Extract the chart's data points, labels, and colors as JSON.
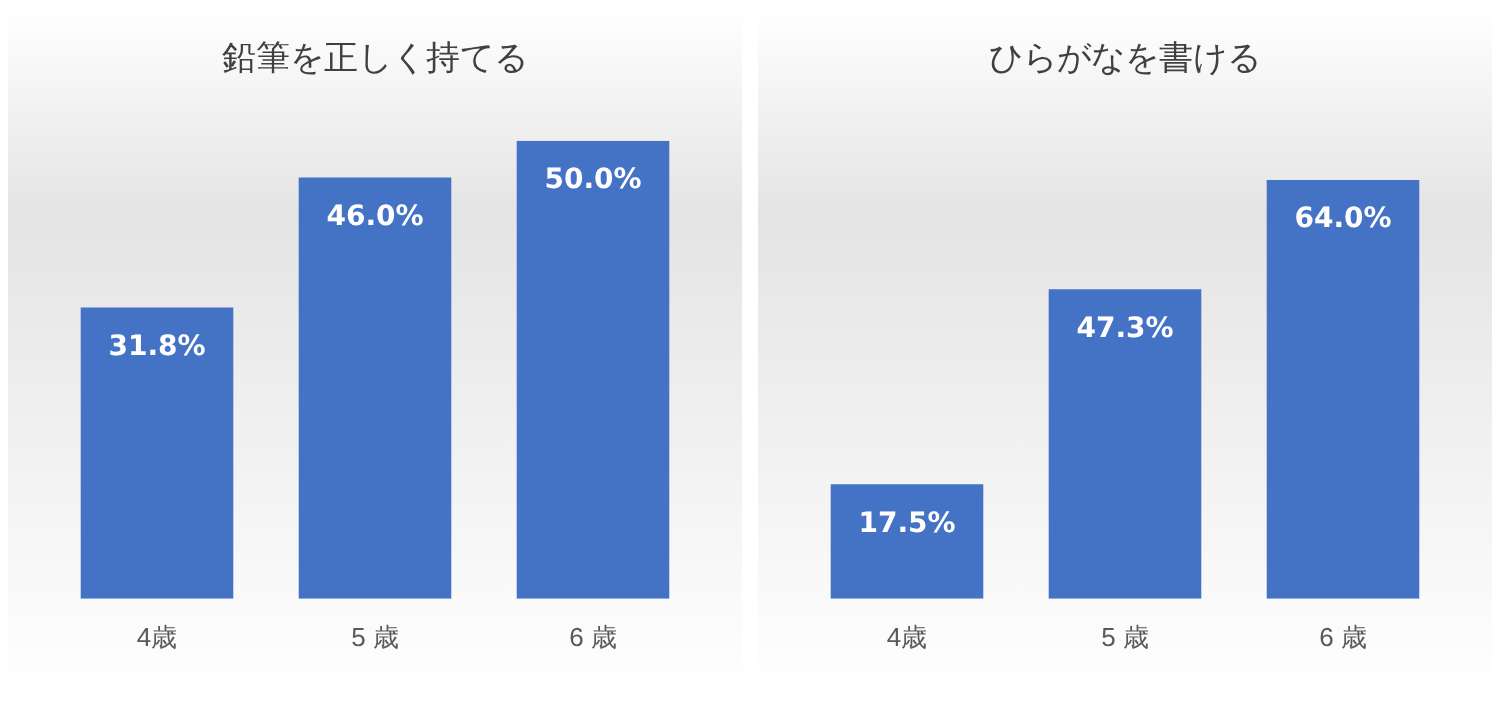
{
  "chart_data": [
    {
      "type": "bar",
      "title": "鉛筆を正しく持てる",
      "categories": [
        "4歳",
        "5 歳",
        "6 歳"
      ],
      "values": [
        31.8,
        46.0,
        50.0
      ],
      "value_labels": [
        "31.8%",
        "46.0%",
        "50.0%"
      ],
      "color": "#4472c4",
      "grid": false,
      "legend": false
    },
    {
      "type": "bar",
      "title": "ひらがなを書ける",
      "categories": [
        "4歳",
        "5 歳",
        "6 歳"
      ],
      "values": [
        17.5,
        47.3,
        64.0
      ],
      "value_labels": [
        "17.5%",
        "47.3%",
        "64.0%"
      ],
      "color": "#4472c4",
      "grid": false,
      "legend": false
    }
  ]
}
